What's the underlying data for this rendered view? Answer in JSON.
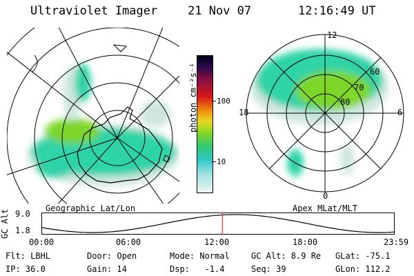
{
  "header": {
    "title": "Ultraviolet Imager",
    "date": "21 Nov 07",
    "time": "12:16:49 UT"
  },
  "left_map": {
    "label": "Geographic Lat/Lon"
  },
  "right_map": {
    "label": "Apex MLat/MLT",
    "mlt_labels": {
      "top": "12",
      "left": "18",
      "right": "6",
      "bottom": "0"
    },
    "mlat_labels": [
      "60",
      "70",
      "80"
    ]
  },
  "colorbar": {
    "label": "photon cm⁻²s⁻¹",
    "ticks": [
      "100",
      "10"
    ]
  },
  "altitude_plot": {
    "label": "GC Alt",
    "y_ticks": [
      "9.0",
      "1.8"
    ],
    "x_ticks": [
      "00:00",
      "06:00",
      "12:00",
      "18:00",
      "23:59"
    ],
    "marker_time": "12:16:49"
  },
  "footer": {
    "filter": "Flt: LBHL",
    "ip": "IP: 36.0",
    "door": "Door: Open",
    "gain": "Gain: 14",
    "mode": "Mode: Normal",
    "dsp": "Dsp:   -1.4",
    "gc_alt": "GC Alt: 8.9 Re",
    "seq": "Seq: 39",
    "glat": "GLat: -75.1",
    "glon": "GLon: 112.2"
  },
  "colors": {
    "aurora_main": "#2fd3a8",
    "aurora_green": "#7ed62a",
    "aurora_haze": "#cfe6e0",
    "altitude_marker": "#ff0000"
  }
}
